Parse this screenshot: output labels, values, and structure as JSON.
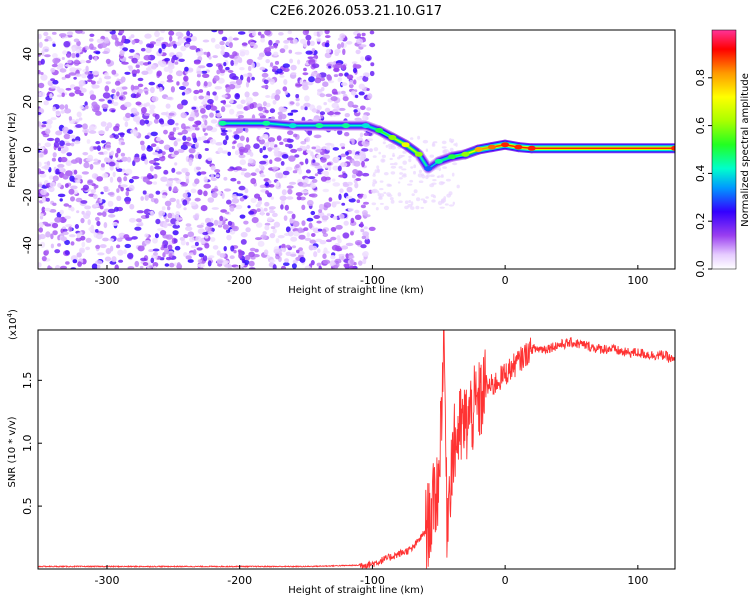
{
  "title": "C2E6.2026.053.21.10.G17",
  "chart_data": [
    {
      "type": "heatmap",
      "xlabel": "Height of straight line (km)",
      "ylabel": "Frequency (Hz)",
      "xlim": [
        -352,
        128
      ],
      "ylim": [
        -50,
        50
      ],
      "xticks": [
        -300,
        -200,
        -100,
        0,
        100
      ],
      "yticks": [
        -40,
        -20,
        0,
        20,
        40
      ],
      "colorbar": {
        "label": "Normalized spectral amplitude",
        "range": [
          0.0,
          1.0
        ],
        "ticks": [
          "0.0",
          "0.2",
          "0.4",
          "0.6",
          "0.8"
        ]
      },
      "noise_region_x": [
        -352,
        -100
      ],
      "ridge": {
        "x": [
          -213,
          -180,
          -160,
          -140,
          -120,
          -105,
          -95,
          -85,
          -75,
          -65,
          -58,
          -50,
          -40,
          -30,
          -20,
          -10,
          0,
          10,
          20,
          128
        ],
        "y": [
          11,
          11,
          10,
          10,
          10,
          10,
          8,
          5,
          2,
          -2,
          -8,
          -5,
          -3,
          -2,
          0,
          1,
          2,
          1,
          0.5,
          0.5
        ],
        "amplitude": [
          0.45,
          0.45,
          0.4,
          0.45,
          0.45,
          0.4,
          0.5,
          0.6,
          0.7,
          0.6,
          0.3,
          0.45,
          0.5,
          0.6,
          0.8,
          0.85,
          0.9,
          0.9,
          0.9,
          0.9
        ]
      },
      "grid": false
    },
    {
      "type": "line",
      "xlabel": "Height of straight line (km)",
      "ylabel": "SNR (10 * v/v)",
      "y_multiplier": "(x10",
      "y_multiplier_exp": "4",
      "y_multiplier_close": ")",
      "xlim": [
        -352,
        128
      ],
      "ylim": [
        0.0,
        1.9
      ],
      "xticks": [
        -300,
        -200,
        -100,
        0,
        100
      ],
      "yticks": [
        "0.5",
        "1.0",
        "1.5"
      ],
      "color": "#ff3333",
      "series": [
        {
          "x": [
            -352,
            -300,
            -250,
            -200,
            -150,
            -110,
            -100,
            -90,
            -80,
            -70,
            -60,
            -55,
            -50,
            -46,
            -44,
            -40,
            -35,
            -30,
            -25,
            -20,
            -15,
            -10,
            -5,
            0,
            5,
            10,
            15,
            20,
            30,
            40,
            50,
            60,
            70,
            80,
            90,
            100,
            110,
            120,
            128
          ],
          "y": [
            0.02,
            0.02,
            0.02,
            0.02,
            0.02,
            0.03,
            0.04,
            0.08,
            0.12,
            0.16,
            0.3,
            0.45,
            0.7,
            1.9,
            0.4,
            0.9,
            1.1,
            1.15,
            1.25,
            1.3,
            1.45,
            1.45,
            1.5,
            1.55,
            1.6,
            1.65,
            1.7,
            1.75,
            1.75,
            1.78,
            1.8,
            1.78,
            1.75,
            1.75,
            1.72,
            1.72,
            1.7,
            1.7,
            1.65
          ]
        }
      ],
      "grid": false
    }
  ]
}
